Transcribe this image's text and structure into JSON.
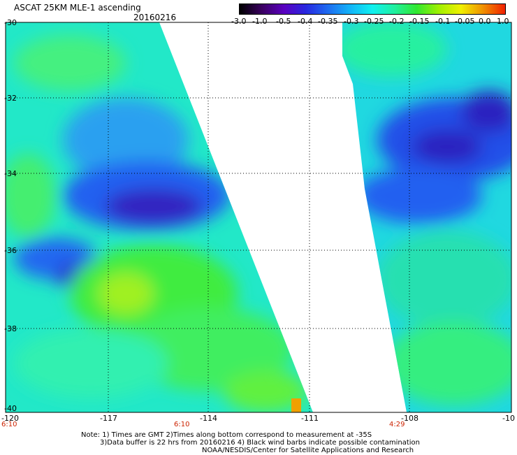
{
  "header": {
    "title": "ASCAT 25KM MLE-1 ascending",
    "date": "20160216"
  },
  "colorbar": {
    "labels": [
      "-3.0",
      "-1.0",
      "-0.5",
      "-0.4",
      "-0.35",
      "-0.3",
      "-0.25",
      "-0.2",
      "-0.15",
      "-0.1",
      "-0.05",
      "0.0",
      "1.0"
    ],
    "colors": [
      "#000000",
      "#3a0060",
      "#5a00c0",
      "#2828e0",
      "#1e6cf0",
      "#12b4f8",
      "#10f0f0",
      "#20f0a0",
      "#30e830",
      "#a0f000",
      "#f0f000",
      "#f09000",
      "#f02000"
    ]
  },
  "axes": {
    "y_ticks": [
      "-30",
      "-32",
      "-34",
      "-36",
      "-38",
      "-40"
    ],
    "x_ticks": [
      "-120",
      "-117",
      "-114",
      "-111",
      "-108",
      "-10"
    ]
  },
  "times": [
    "6:10",
    "6:10",
    "4:29"
  ],
  "notes": [
    "Note: 1) Times are GMT 2)Times along bottom correspond to measurement at -35S",
    "3)Data buffer is 22 hrs from 20160216 4) Black wind barbs indicate possible contamination",
    "NOAA/NESDIS/Center for Satellite Applications and Research"
  ]
}
